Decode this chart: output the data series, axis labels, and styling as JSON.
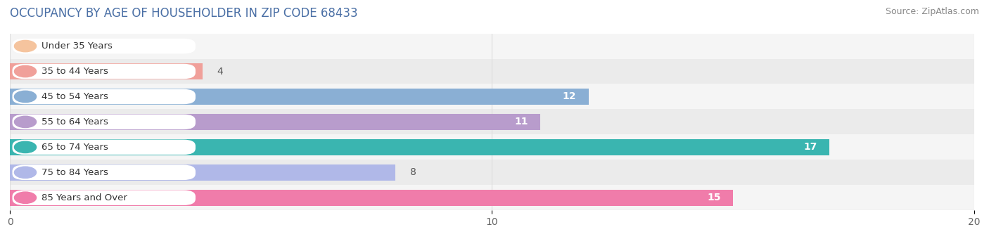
{
  "title": "OCCUPANCY BY AGE OF HOUSEHOLDER IN ZIP CODE 68433",
  "source": "Source: ZipAtlas.com",
  "categories": [
    "Under 35 Years",
    "35 to 44 Years",
    "45 to 54 Years",
    "55 to 64 Years",
    "65 to 74 Years",
    "75 to 84 Years",
    "85 Years and Over"
  ],
  "values": [
    0,
    4,
    12,
    11,
    17,
    8,
    15
  ],
  "bar_colors": [
    "#f5c49e",
    "#f0a09a",
    "#8aafd4",
    "#b89ccc",
    "#3ab5b0",
    "#b0b8e8",
    "#f07caa"
  ],
  "xlim": [
    0,
    20
  ],
  "xticks": [
    0,
    10,
    20
  ],
  "label_color_dark": "#555555",
  "label_color_white": "#ffffff",
  "title_fontsize": 12,
  "source_fontsize": 9,
  "tick_fontsize": 10,
  "bar_label_fontsize": 10,
  "category_fontsize": 9.5,
  "background_color": "#ffffff",
  "row_bg_even": "#f5f5f5",
  "row_bg_odd": "#ebebeb",
  "grid_color": "#dddddd",
  "pill_bg_color": "#ffffff"
}
